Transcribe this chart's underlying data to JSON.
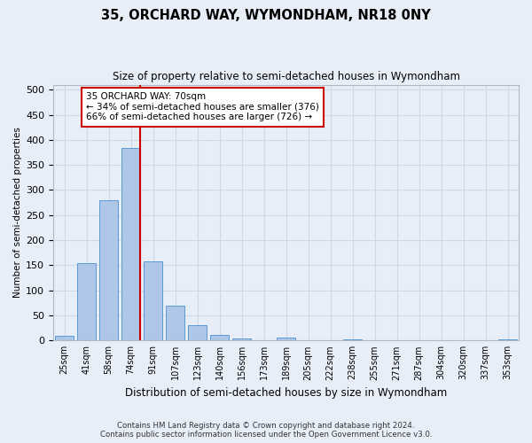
{
  "title": "35, ORCHARD WAY, WYMONDHAM, NR18 0NY",
  "subtitle": "Size of property relative to semi-detached houses in Wymondham",
  "xlabel": "Distribution of semi-detached houses by size in Wymondham",
  "ylabel": "Number of semi-detached properties",
  "footer1": "Contains HM Land Registry data © Crown copyright and database right 2024.",
  "footer2": "Contains public sector information licensed under the Open Government Licence v3.0.",
  "categories": [
    "25sqm",
    "41sqm",
    "58sqm",
    "74sqm",
    "91sqm",
    "107sqm",
    "123sqm",
    "140sqm",
    "156sqm",
    "173sqm",
    "189sqm",
    "205sqm",
    "222sqm",
    "238sqm",
    "255sqm",
    "271sqm",
    "287sqm",
    "304sqm",
    "320sqm",
    "337sqm",
    "353sqm"
  ],
  "values": [
    10,
    155,
    280,
    383,
    157,
    70,
    30,
    12,
    4,
    0,
    6,
    0,
    0,
    3,
    0,
    0,
    0,
    0,
    0,
    0,
    3
  ],
  "bar_color": "#aec6e8",
  "bar_edge_color": "#5b9bd5",
  "grid_color": "#d0d8e8",
  "background_color": "#e8eef8",
  "property_line_idx": 3,
  "annotation_text1": "35 ORCHARD WAY: 70sqm",
  "annotation_text2": "← 34% of semi-detached houses are smaller (376)",
  "annotation_text3": "66% of semi-detached houses are larger (726) →",
  "annotation_box_color": "#ffffff",
  "annotation_box_edge_color": "#cc0000",
  "red_line_color": "#cc0000",
  "ylim": [
    0,
    510
  ],
  "yticks": [
    0,
    50,
    100,
    150,
    200,
    250,
    300,
    350,
    400,
    450,
    500
  ]
}
